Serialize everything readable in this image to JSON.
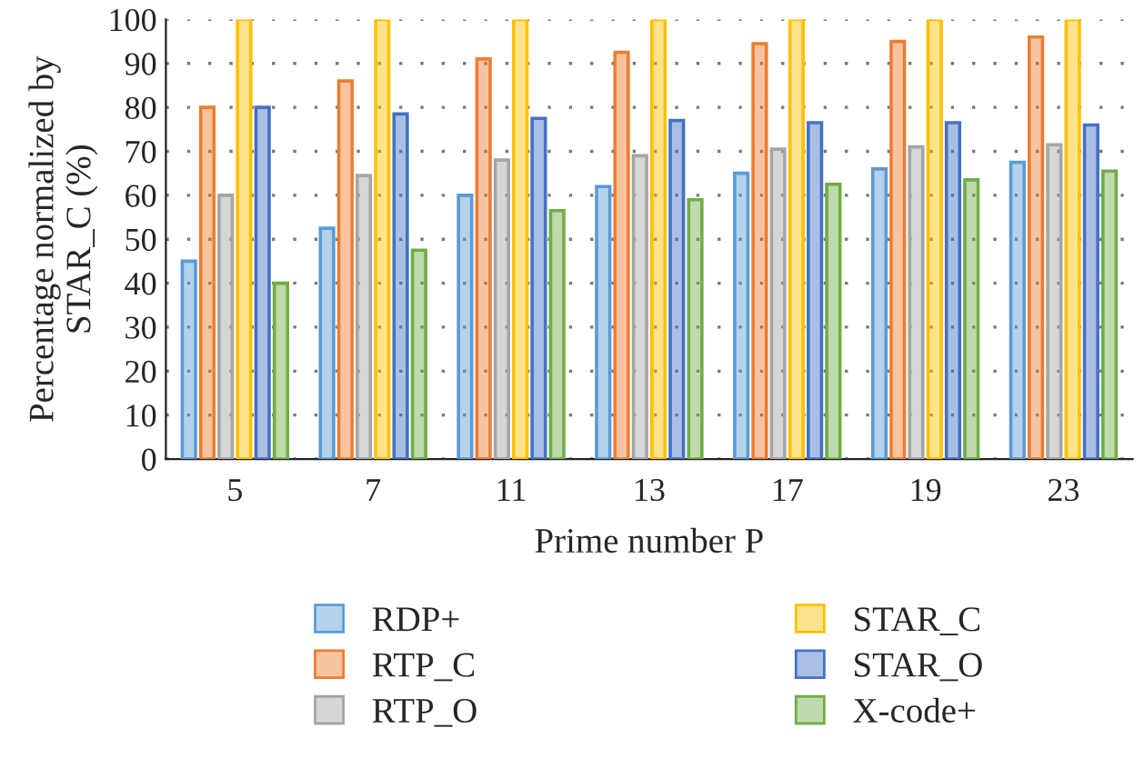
{
  "chart_data": {
    "type": "bar",
    "xlabel": "Prime number P",
    "ylabel": "Percentage normalized by\nSTAR_C (%)",
    "categories": [
      "5",
      "7",
      "11",
      "13",
      "17",
      "19",
      "23"
    ],
    "series": [
      {
        "name": "RDP+",
        "color": "#5b9bd5",
        "values": [
          45,
          52.5,
          60,
          62,
          65,
          66,
          67.5
        ]
      },
      {
        "name": "RTP_C",
        "color": "#ed7d31",
        "values": [
          80,
          86,
          91,
          92.5,
          94.5,
          95,
          96
        ]
      },
      {
        "name": "RTP_O",
        "color": "#a5a5a5",
        "values": [
          60,
          64.5,
          68,
          69,
          70.5,
          71,
          71.5
        ]
      },
      {
        "name": "STAR_C",
        "color": "#ffc000",
        "values": [
          100,
          100,
          100,
          100,
          100,
          100,
          100
        ]
      },
      {
        "name": "STAR_O",
        "color": "#4472c4",
        "values": [
          80,
          78.5,
          77.5,
          77,
          76.5,
          76.5,
          76
        ]
      },
      {
        "name": "X-code+",
        "color": "#70ad47",
        "values": [
          40,
          47.5,
          56.5,
          59,
          62.5,
          63.5,
          65.5
        ]
      }
    ],
    "ylim": [
      0,
      100
    ],
    "yticks": [
      0,
      10,
      20,
      30,
      40,
      50,
      60,
      70,
      80,
      90,
      100
    ],
    "grid": "y",
    "legend": "bottom"
  }
}
